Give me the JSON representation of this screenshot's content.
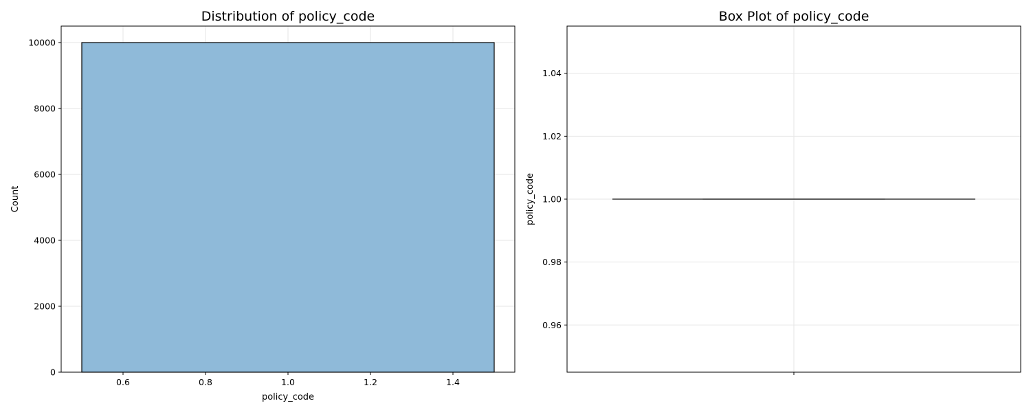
{
  "chart_data": [
    {
      "type": "bar",
      "title": "Distribution of policy_code",
      "xlabel": "policy_code",
      "ylabel": "Count",
      "xlim": [
        0.45,
        1.55
      ],
      "ylim": [
        0,
        10500
      ],
      "xticks": [
        0.6,
        0.8,
        1.0,
        1.2,
        1.4
      ],
      "xtick_labels": [
        "0.6",
        "0.8",
        "1.0",
        "1.2",
        "1.4"
      ],
      "yticks": [
        0,
        2000,
        4000,
        6000,
        8000,
        10000
      ],
      "ytick_labels": [
        "0",
        "2000",
        "4000",
        "6000",
        "8000",
        "10000"
      ],
      "bins": [
        {
          "start": 0.5,
          "end": 1.5,
          "count": 10000
        }
      ],
      "grid": true,
      "colors": {
        "bar_fill": "#8fbad9",
        "bar_edge": "#000000",
        "grid": "#e6e6e6"
      }
    },
    {
      "type": "box",
      "title": "Box Plot of policy_code",
      "xlabel": "",
      "ylabel": "policy_code",
      "ylim": [
        0.945,
        1.055
      ],
      "yticks": [
        0.96,
        0.98,
        1.0,
        1.02,
        1.04
      ],
      "ytick_labels": [
        "0.96",
        "0.98",
        "1.00",
        "1.02",
        "1.04"
      ],
      "box": {
        "min": 1.0,
        "q1": 1.0,
        "median": 1.0,
        "q3": 1.0,
        "max": 1.0
      },
      "grid": true,
      "colors": {
        "box_line": "#555555",
        "grid": "#e6e6e6"
      }
    }
  ]
}
